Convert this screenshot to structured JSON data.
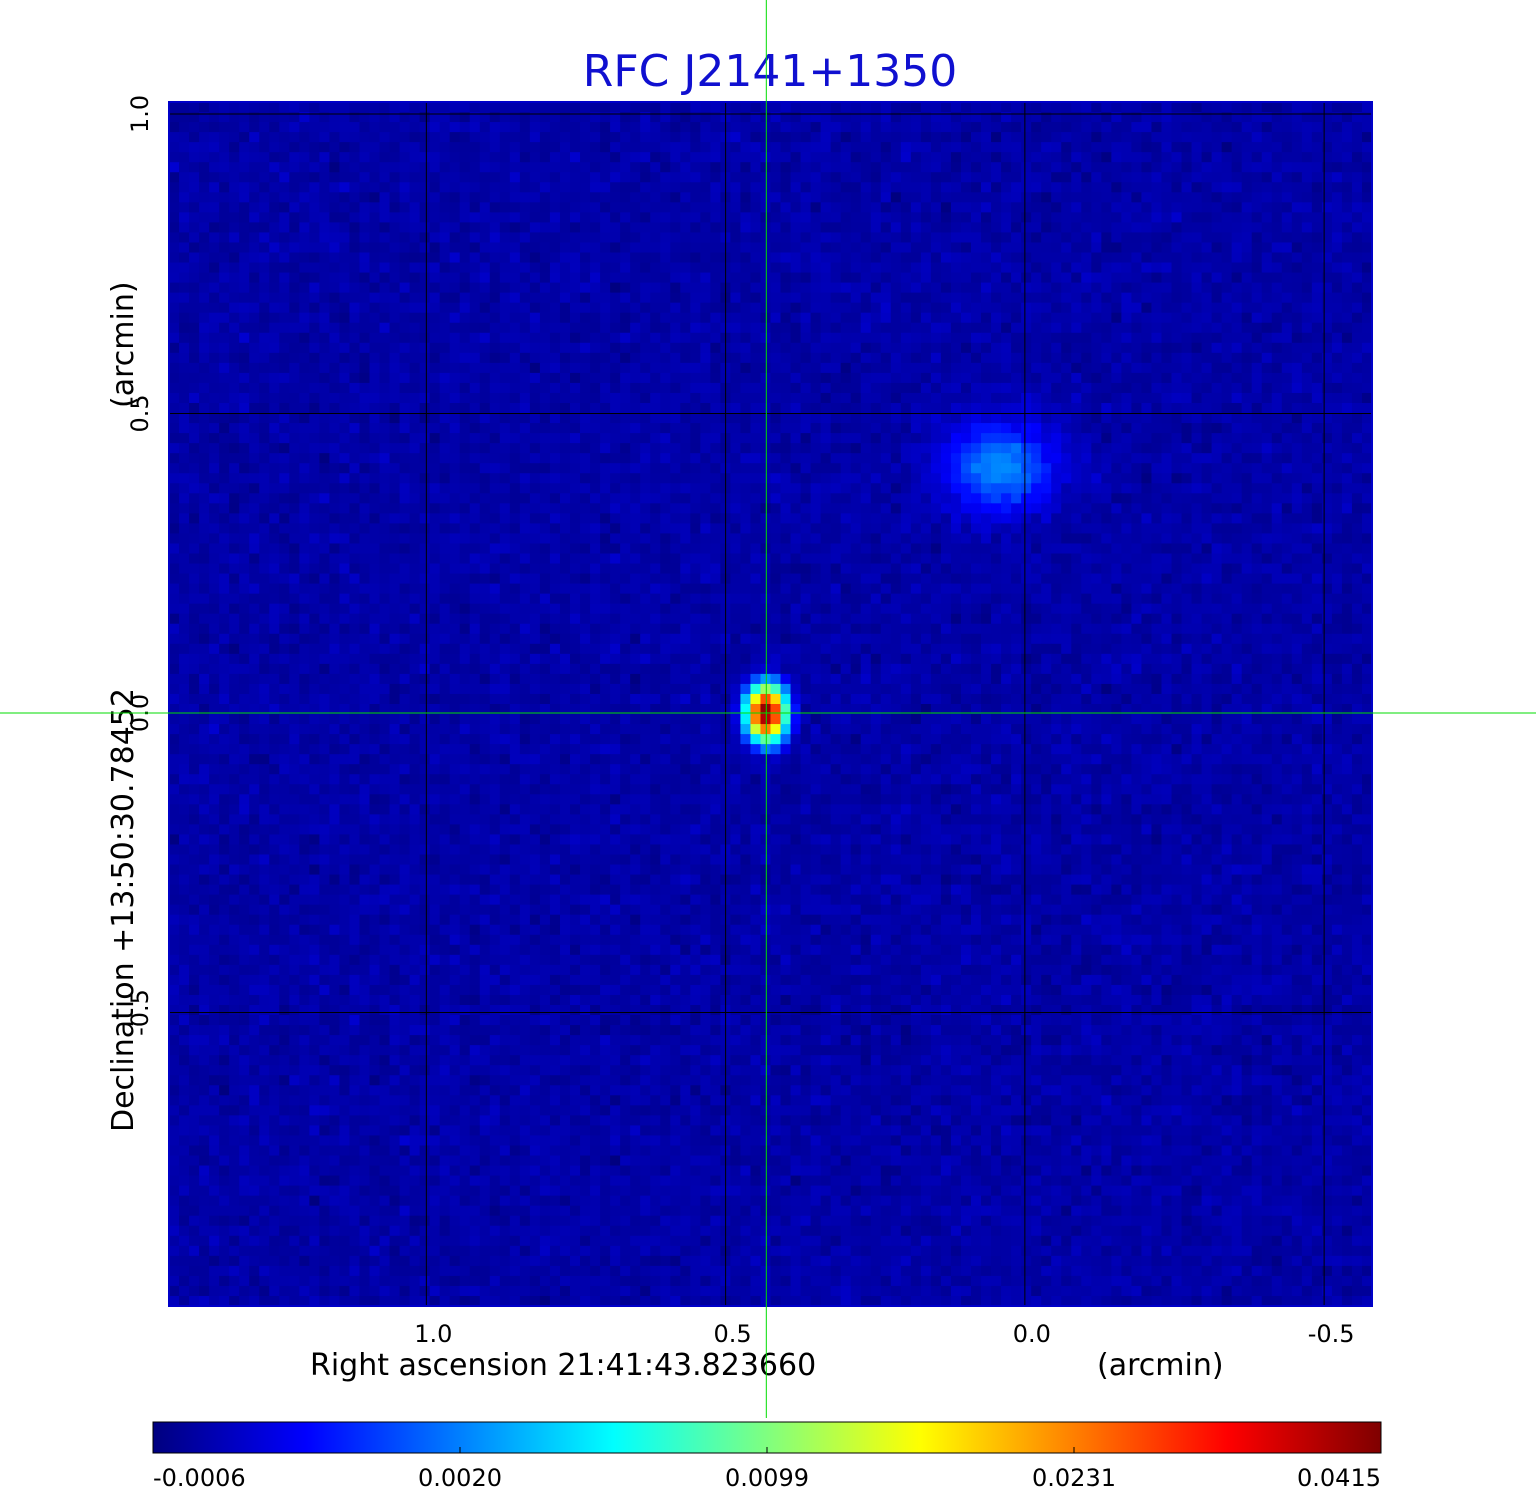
{
  "chart_data": {
    "type": "heatmap",
    "title": "RFC J2141+1350",
    "title_color": "#1010d0",
    "xlabel": "Right ascension  21:41:43.823660",
    "xunit": "(arcmin)",
    "ylabel": "Declination  +13:50:30.78452",
    "yunit": "(arcmin)",
    "xlim": [
      1.43,
      -0.58
    ],
    "ylim": [
      -0.99,
      1.02
    ],
    "x_ticks": [
      {
        "value": 1.0,
        "label": "1.0"
      },
      {
        "value": 0.5,
        "label": "0.5"
      },
      {
        "value": 0.0,
        "label": "0.0"
      },
      {
        "value": -0.5,
        "label": "-0.5"
      }
    ],
    "y_ticks": [
      {
        "value": 1.0,
        "label": "1.0"
      },
      {
        "value": 0.5,
        "label": "0.5"
      },
      {
        "value": 0.0,
        "label": "0.0"
      },
      {
        "value": -0.5,
        "label": "-0.5"
      }
    ],
    "grid": true,
    "crosshair": {
      "x": 0.432,
      "y": 0.0,
      "color": "#00dd00"
    },
    "colormap": "jet",
    "colorbar": {
      "ticks": [
        "-0.0006",
        "0.0020",
        "0.0099",
        "0.0231",
        "0.0415"
      ],
      "min": -0.0006,
      "max": 0.0415
    },
    "sources": [
      {
        "ra": 0.432,
        "dec": 0.0,
        "peak": 0.0415
      },
      {
        "ra": 0.04,
        "dec": 0.41,
        "peak": 0.0024
      }
    ],
    "background_level": -0.0002,
    "noise_rms": 0.00025
  }
}
